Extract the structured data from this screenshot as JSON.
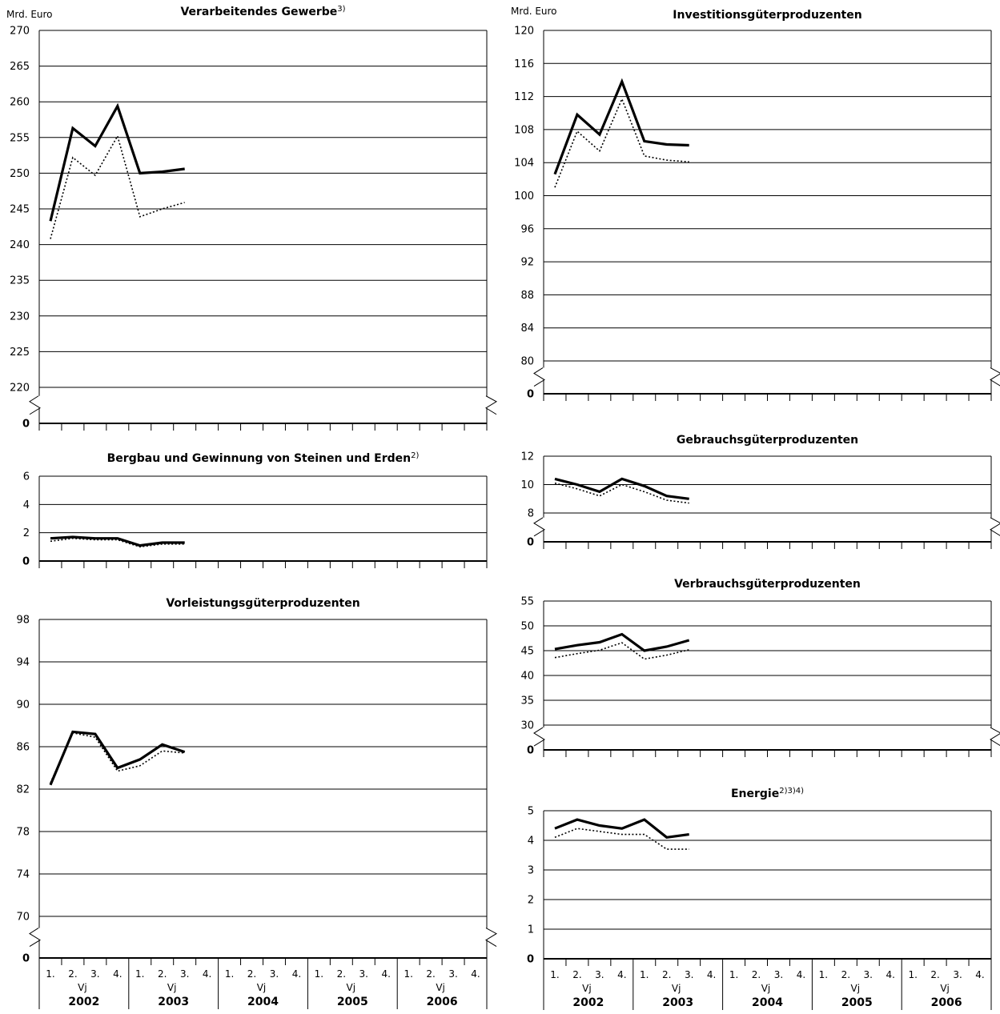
{
  "units": "Mrd. Euro",
  "x_axis": {
    "quarters": [
      "1.",
      "2.",
      "3.",
      "4."
    ],
    "period_label": "Vj",
    "years": [
      "2002",
      "2003",
      "2004",
      "2005",
      "2006"
    ]
  },
  "series_styles": [
    {
      "id": "thick-solid",
      "color": "#000000"
    },
    {
      "id": "dotted",
      "color": "#000000"
    }
  ],
  "chart_data": [
    {
      "id": "verarbeitendes",
      "type": "line",
      "title": "Verarbeitendes Gewerbe",
      "title_note": "3)",
      "ylabel": "Mrd. Euro",
      "yticks": [
        270,
        265,
        260,
        255,
        250,
        245,
        240,
        235,
        230,
        225,
        220,
        0
      ],
      "ylim": [
        220,
        270
      ],
      "axis_break": true,
      "x": [
        "2002 Q1",
        "2002 Q2",
        "2002 Q3",
        "2002 Q4",
        "2003 Q1",
        "2003 Q2",
        "2003 Q3"
      ],
      "series": [
        {
          "values": [
            243.3,
            256.3,
            253.8,
            259.4,
            250.0,
            250.2,
            250.6
          ]
        },
        {
          "values": [
            240.8,
            252.2,
            249.7,
            255.2,
            243.9,
            245.0,
            245.9
          ]
        }
      ]
    },
    {
      "id": "bergbau",
      "type": "line",
      "title": "Bergbau und Gewinnung von Steinen und Erden",
      "title_note": "2)",
      "ylabel": "",
      "yticks": [
        6,
        4,
        2,
        0
      ],
      "ylim": [
        0,
        6
      ],
      "axis_break": false,
      "x": [
        "2002 Q1",
        "2002 Q2",
        "2002 Q3",
        "2002 Q4",
        "2003 Q1",
        "2003 Q2",
        "2003 Q3"
      ],
      "series": [
        {
          "values": [
            1.6,
            1.7,
            1.6,
            1.6,
            1.1,
            1.3,
            1.3
          ]
        },
        {
          "values": [
            1.4,
            1.6,
            1.5,
            1.5,
            1.0,
            1.2,
            1.2
          ]
        }
      ]
    },
    {
      "id": "vorleistung",
      "type": "line",
      "title": "Vorleistungsgüterproduzenten",
      "title_note": "",
      "ylabel": "",
      "yticks": [
        98,
        94,
        90,
        86,
        82,
        78,
        74,
        70,
        0
      ],
      "ylim": [
        70,
        98
      ],
      "axis_break": true,
      "x": [
        "2002 Q1",
        "2002 Q2",
        "2002 Q3",
        "2002 Q4",
        "2003 Q1",
        "2003 Q2",
        "2003 Q3"
      ],
      "series": [
        {
          "values": [
            82.4,
            87.4,
            87.2,
            84.0,
            84.8,
            86.2,
            85.5
          ]
        },
        {
          "values": [
            82.6,
            87.3,
            86.9,
            83.7,
            84.2,
            85.6,
            85.4
          ]
        }
      ]
    },
    {
      "id": "investition",
      "type": "line",
      "title": "Investitionsgüterproduzenten",
      "title_note": "",
      "ylabel": "Mrd. Euro",
      "yticks": [
        120,
        116,
        112,
        108,
        104,
        100,
        96,
        92,
        88,
        84,
        80,
        0
      ],
      "ylim": [
        80,
        120
      ],
      "axis_break": true,
      "x": [
        "2002 Q1",
        "2002 Q2",
        "2002 Q3",
        "2002 Q4",
        "2003 Q1",
        "2003 Q2",
        "2003 Q3"
      ],
      "series": [
        {
          "values": [
            102.6,
            109.8,
            107.4,
            113.8,
            106.6,
            106.2,
            106.1
          ]
        },
        {
          "values": [
            101.0,
            107.8,
            105.4,
            111.7,
            104.8,
            104.3,
            104.1
          ]
        }
      ]
    },
    {
      "id": "gebrauch",
      "type": "line",
      "title": "Gebrauchsgüterproduzenten",
      "title_note": "",
      "ylabel": "",
      "yticks": [
        12,
        10,
        8,
        0
      ],
      "ylim": [
        8,
        12
      ],
      "axis_break": true,
      "x": [
        "2002 Q1",
        "2002 Q2",
        "2002 Q3",
        "2002 Q4",
        "2003 Q1",
        "2003 Q2",
        "2003 Q3"
      ],
      "series": [
        {
          "values": [
            10.4,
            10.0,
            9.5,
            10.4,
            9.9,
            9.2,
            9.0
          ]
        },
        {
          "values": [
            10.1,
            9.7,
            9.2,
            10.0,
            9.5,
            8.9,
            8.7
          ]
        }
      ]
    },
    {
      "id": "verbrauch",
      "type": "line",
      "title": "Verbrauchsgüterproduzenten",
      "title_note": "",
      "ylabel": "",
      "yticks": [
        55,
        50,
        45,
        40,
        35,
        30,
        0
      ],
      "ylim": [
        30,
        55
      ],
      "axis_break": true,
      "x": [
        "2002 Q1",
        "2002 Q2",
        "2002 Q3",
        "2002 Q4",
        "2003 Q1",
        "2003 Q2",
        "2003 Q3"
      ],
      "series": [
        {
          "values": [
            45.3,
            46.1,
            46.7,
            48.3,
            45.0,
            45.8,
            47.1
          ]
        },
        {
          "values": [
            43.6,
            44.4,
            45.1,
            46.6,
            43.3,
            44.1,
            45.2
          ]
        }
      ]
    },
    {
      "id": "energie",
      "type": "line",
      "title": "Energie",
      "title_note": "2)3)4)",
      "ylabel": "",
      "yticks": [
        5,
        4,
        3,
        2,
        1,
        0
      ],
      "ylim": [
        0,
        5
      ],
      "axis_break": false,
      "x": [
        "2002 Q1",
        "2002 Q2",
        "2002 Q3",
        "2002 Q4",
        "2003 Q1",
        "2003 Q2",
        "2003 Q3"
      ],
      "series": [
        {
          "values": [
            4.4,
            4.7,
            4.5,
            4.4,
            4.7,
            4.1,
            4.2
          ]
        },
        {
          "values": [
            4.1,
            4.4,
            4.3,
            4.2,
            4.2,
            3.7,
            3.7
          ]
        }
      ]
    }
  ]
}
